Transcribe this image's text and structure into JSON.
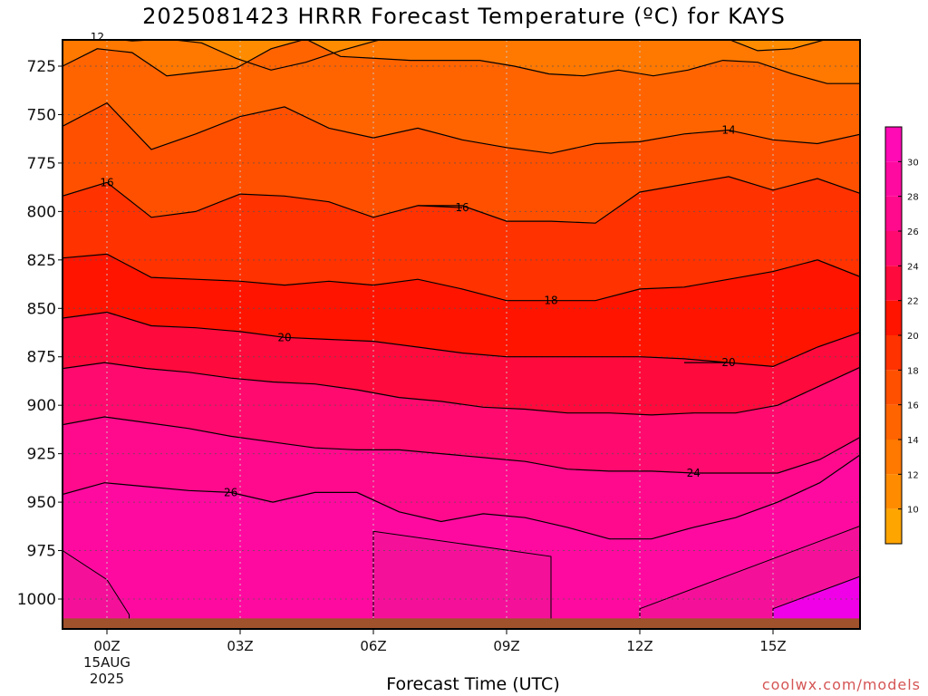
{
  "title": "2025081423 HRRR Forecast Temperature (ºC) for KAYS",
  "xlabel": "Forecast Time (UTC)",
  "credit": "coolwx.com/models",
  "colors": {
    "ground": "#a0522d",
    "contour": "#000000",
    "gridline": "#aaaaaa",
    "colorbar": [
      "#ffa500",
      "#ff8c00",
      "#ff7800",
      "#ff6400",
      "#ff5000",
      "#ff3200",
      "#ff1400",
      "#ff0a3c",
      "#ff0a6e",
      "#ff0a8c",
      "#ff0aa0",
      "#ff0ab4",
      "#ff0ad2",
      "#ff14ff"
    ]
  },
  "chart_data": {
    "type": "heatmap",
    "variable": "Temperature (ºC)",
    "x": [
      "00Z",
      "01Z",
      "02Z",
      "03Z",
      "04Z",
      "05Z",
      "06Z",
      "07Z",
      "08Z",
      "09Z",
      "10Z",
      "11Z",
      "12Z",
      "13Z",
      "14Z",
      "15Z",
      "16Z",
      "17Z"
    ],
    "xticks": [
      {
        "x": "00Z",
        "label": "00Z",
        "sub": [
          "15AUG",
          "2025"
        ]
      },
      {
        "x": "03Z",
        "label": "03Z"
      },
      {
        "x": "06Z",
        "label": "06Z"
      },
      {
        "x": "09Z",
        "label": "09Z"
      },
      {
        "x": "12Z",
        "label": "12Z"
      },
      {
        "x": "15Z",
        "label": "15Z"
      }
    ],
    "xlim": [
      -1,
      17
    ],
    "ylim": [
      1015,
      712
    ],
    "yticks": [
      725,
      750,
      775,
      800,
      825,
      850,
      875,
      900,
      925,
      950,
      975,
      1000
    ],
    "surface_pressure_hpa": 1010,
    "grid": true,
    "colorbar": {
      "ticks": [
        10,
        12,
        14,
        16,
        18,
        20,
        22,
        24,
        26,
        28,
        30
      ],
      "range": [
        8,
        32
      ],
      "step": 2
    },
    "isotherms": [
      {
        "temp": 12,
        "pressure": [
          708,
          710,
          712,
          711,
          713,
          721,
          727,
          723,
          717,
          712,
          708,
          708,
          707,
          706,
          706,
          706,
          706,
          706,
          707,
          710,
          717,
          716,
          711,
          708
        ],
        "label": {
          "x": 0,
          "text": "12"
        }
      },
      {
        "temp": 13,
        "pressure": [
          725,
          716,
          718,
          730,
          728,
          726,
          716,
          711,
          720,
          721,
          722,
          722,
          722,
          725,
          729,
          730,
          727,
          730,
          727,
          722,
          723,
          729,
          734,
          734
        ],
        "label": null
      },
      {
        "temp": 14,
        "pressure": [
          756,
          744,
          768,
          760,
          751,
          746,
          757,
          762,
          757,
          763,
          767,
          770,
          765,
          764,
          760,
          758,
          763,
          765,
          760
        ],
        "label": {
          "x": 14,
          "text": "14"
        }
      },
      {
        "temp": 16,
        "pressure": [
          792,
          785,
          803,
          800,
          791,
          792,
          795,
          803,
          797,
          797,
          805,
          805,
          806,
          790,
          786,
          782,
          789,
          783,
          791
        ],
        "label": {
          "x": 0,
          "text": "16"
        }
      },
      {
        "temp": 16,
        "pressure": [
          797,
          798
        ],
        "xrange": [
          7,
          8
        ],
        "label": {
          "x": 8,
          "text": "16"
        }
      },
      {
        "temp": 18,
        "pressure": [
          824,
          822,
          834,
          835,
          836,
          838,
          836,
          838,
          835,
          840,
          846,
          846,
          846,
          840,
          839,
          835,
          831,
          825,
          834
        ],
        "label": {
          "x": 10,
          "text": "18"
        }
      },
      {
        "temp": 20,
        "pressure": [
          855,
          852,
          859,
          860,
          862,
          865,
          866,
          867,
          870,
          873,
          875,
          875,
          875,
          875,
          876,
          878,
          880,
          870,
          862
        ],
        "label": {
          "x": 4,
          "text": "20"
        }
      },
      {
        "temp": 20,
        "pressure": [
          878,
          878
        ],
        "xrange": [
          13,
          14
        ],
        "label": {
          "x": 14,
          "text": "20"
        }
      },
      {
        "temp": 22,
        "pressure": [
          881,
          878,
          881,
          883,
          886,
          888,
          889,
          892,
          896,
          898,
          901,
          902,
          904,
          904,
          905,
          904,
          904,
          900,
          890,
          880
        ],
        "label": null
      },
      {
        "temp": 24,
        "pressure": [
          910,
          906,
          909,
          912,
          916,
          919,
          922,
          923,
          923,
          925,
          927,
          929,
          933,
          934,
          934,
          935,
          935,
          935,
          928,
          916
        ],
        "label": {
          "x": 13,
          "text": "24"
        }
      },
      {
        "temp": 26,
        "pressure": [
          946,
          940,
          942,
          944,
          945,
          950,
          945,
          945,
          955,
          960,
          956,
          958,
          963,
          969,
          969,
          963,
          958,
          950,
          940,
          925
        ],
        "label": {
          "x": 3,
          "text": "26"
        }
      }
    ],
    "warm_regions": [
      {
        "temp": 28,
        "region": "surface-left",
        "x": [
          -1,
          0,
          0.5
        ],
        "top_pressure": [
          975,
          990,
          1008
        ]
      },
      {
        "temp": 28,
        "region": "near-surface-middle",
        "x": [
          6,
          10
        ],
        "top_pressure": [
          965,
          978
        ]
      },
      {
        "temp": 28,
        "region": "surface-right",
        "x": [
          12,
          17
        ],
        "top_pressure": [
          1005,
          962
        ]
      },
      {
        "temp": 30,
        "region": "surface-right-inner",
        "x": [
          15,
          17
        ],
        "top_pressure": [
          1005,
          988
        ]
      }
    ]
  }
}
